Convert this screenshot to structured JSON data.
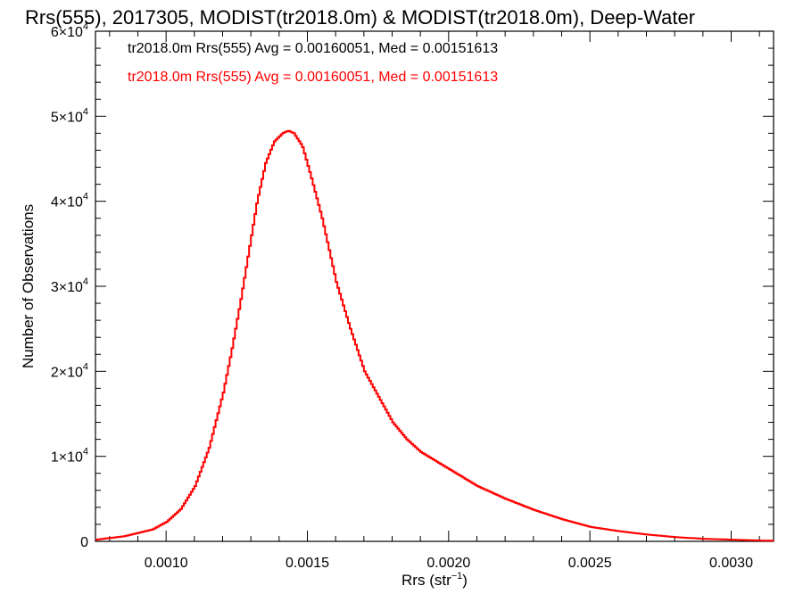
{
  "chart_data": {
    "type": "histogram-step",
    "title": "Rrs(555), 2017305, MODIST(tr2018.0m) & MODIST(tr2018.0m), Deep-Water",
    "xlabel_main": "Rrs (str",
    "xlabel_sup": "−1",
    "xlabel_close": ")",
    "ylabel": "Number of Observations",
    "xlim": [
      0.00075,
      0.00315
    ],
    "ylim": [
      0,
      60000
    ],
    "x_ticks": [
      {
        "value": 0.001,
        "label": "0.0010"
      },
      {
        "value": 0.0015,
        "label": "0.0015"
      },
      {
        "value": 0.002,
        "label": "0.0020"
      },
      {
        "value": 0.0025,
        "label": "0.0025"
      },
      {
        "value": 0.003,
        "label": "0.0030"
      }
    ],
    "y_ticks": [
      {
        "value": 0,
        "mant": "0",
        "exp": ""
      },
      {
        "value": 10000,
        "mant": "1×10",
        "exp": "4"
      },
      {
        "value": 20000,
        "mant": "2×10",
        "exp": "4"
      },
      {
        "value": 30000,
        "mant": "3×10",
        "exp": "4"
      },
      {
        "value": 40000,
        "mant": "4×10",
        "exp": "4"
      },
      {
        "value": 50000,
        "mant": "5×10",
        "exp": "4"
      },
      {
        "value": 60000,
        "mant": "6×10",
        "exp": "4"
      }
    ],
    "legend": [
      {
        "text": "tr2018.0m Rrs(555) Avg = 0.00160051, Med = 0.00151613",
        "color": "#000000"
      },
      {
        "text": "tr2018.0m Rrs(555) Avg = 0.00160051, Med = 0.00151613",
        "color": "#ff0000"
      }
    ],
    "series": [
      {
        "color": "#ff0000",
        "x": [
          0.00075,
          0.00085,
          0.00095,
          0.001,
          0.00105,
          0.0011,
          0.00115,
          0.0012,
          0.00123,
          0.00126,
          0.00129,
          0.00132,
          0.00135,
          0.00138,
          0.00141,
          0.00143,
          0.00145,
          0.00148,
          0.00151,
          0.00155,
          0.0016,
          0.00165,
          0.0017,
          0.00175,
          0.0018,
          0.00185,
          0.0019,
          0.00195,
          0.002,
          0.0021,
          0.0022,
          0.0023,
          0.0024,
          0.0025,
          0.0026,
          0.0027,
          0.0028,
          0.0029,
          0.003,
          0.0031,
          0.00315
        ],
        "y": [
          200,
          600,
          1400,
          2300,
          3800,
          6500,
          11000,
          17500,
          22500,
          28000,
          34000,
          40000,
          44500,
          47000,
          48000,
          48300,
          48000,
          46500,
          43000,
          38000,
          30500,
          25000,
          20000,
          17000,
          14000,
          12000,
          10500,
          9500,
          8500,
          6500,
          5000,
          3700,
          2600,
          1700,
          1200,
          800,
          500,
          300,
          200,
          100,
          80
        ]
      }
    ]
  }
}
